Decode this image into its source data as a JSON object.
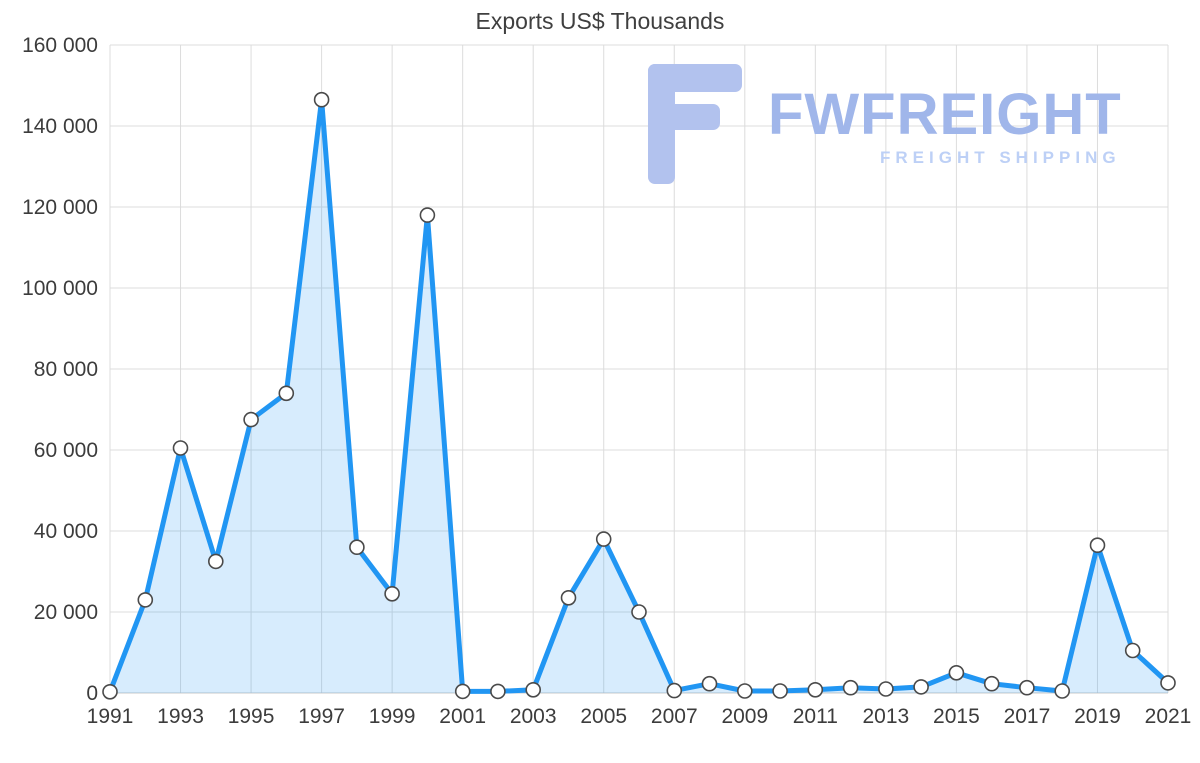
{
  "chart_data": {
    "type": "area",
    "title": "Exports US$ Thousands",
    "x": [
      1991,
      1992,
      1993,
      1994,
      1995,
      1996,
      1997,
      1998,
      1999,
      2000,
      2001,
      2002,
      2003,
      2004,
      2005,
      2006,
      2007,
      2008,
      2009,
      2010,
      2011,
      2012,
      2013,
      2014,
      2015,
      2016,
      2017,
      2018,
      2019,
      2020,
      2021
    ],
    "values": [
      300,
      23000,
      60500,
      32500,
      67500,
      74000,
      146500,
      36000,
      24500,
      118000,
      400,
      400,
      800,
      23500,
      38000,
      20000,
      600,
      2300,
      500,
      500,
      800,
      1300,
      1000,
      1500,
      5000,
      2300,
      1300,
      500,
      36500,
      10500,
      2500
    ],
    "xlabel": "",
    "ylabel": "",
    "ylim": [
      0,
      160000
    ],
    "grid": true,
    "legend": "none",
    "xticks": [
      1991,
      1993,
      1995,
      1997,
      1999,
      2001,
      2003,
      2005,
      2007,
      2009,
      2011,
      2013,
      2015,
      2017,
      2019,
      2021
    ],
    "yticks": [
      {
        "value": 0,
        "label": "0"
      },
      {
        "value": 20000,
        "label": "20 000"
      },
      {
        "value": 40000,
        "label": "40 000"
      },
      {
        "value": 60000,
        "label": "60 000"
      },
      {
        "value": 80000,
        "label": "80 000"
      },
      {
        "value": 100000,
        "label": "100 000"
      },
      {
        "value": 120000,
        "label": "120 000"
      },
      {
        "value": 140000,
        "label": "140 000"
      },
      {
        "value": 160000,
        "label": "160 000"
      }
    ],
    "colors": {
      "line": "#2196f3",
      "fill": "rgba(33,150,243,0.18)",
      "grid": "#dcdcdc",
      "marker_fill": "#ffffff",
      "marker_stroke": "#4a4a4a"
    }
  },
  "watermark": {
    "brand": "FWFREIGHT",
    "tagline": "FREIGHT SHIPPING"
  }
}
